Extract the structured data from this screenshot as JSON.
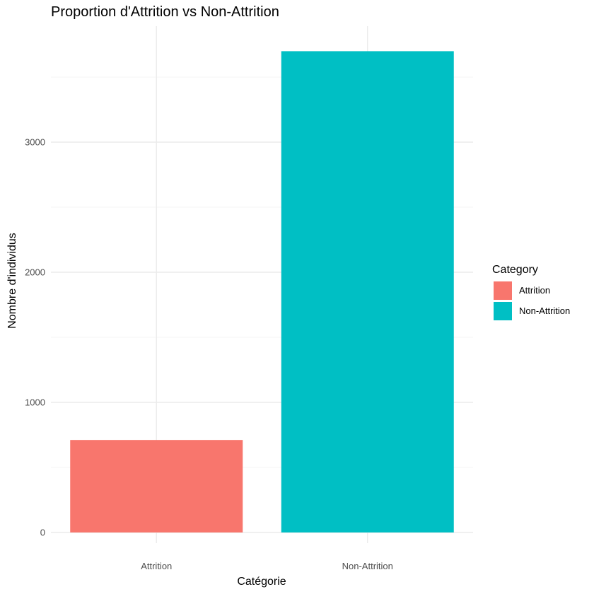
{
  "chart_data": {
    "type": "bar",
    "title": "Proportion d'Attrition vs Non-Attrition",
    "xlabel": "Catégorie",
    "ylabel": "Nombre d'individus",
    "categories": [
      "Attrition",
      "Non-Attrition"
    ],
    "values": [
      711,
      3699
    ],
    "colors": [
      "#F8766D",
      "#00BFC4"
    ],
    "ylim": [
      0,
      3700
    ],
    "yticks": [
      0,
      1000,
      2000,
      3000
    ],
    "grid": true,
    "legend": {
      "title": "Category",
      "position": "right",
      "entries": [
        "Attrition",
        "Non-Attrition"
      ]
    }
  }
}
